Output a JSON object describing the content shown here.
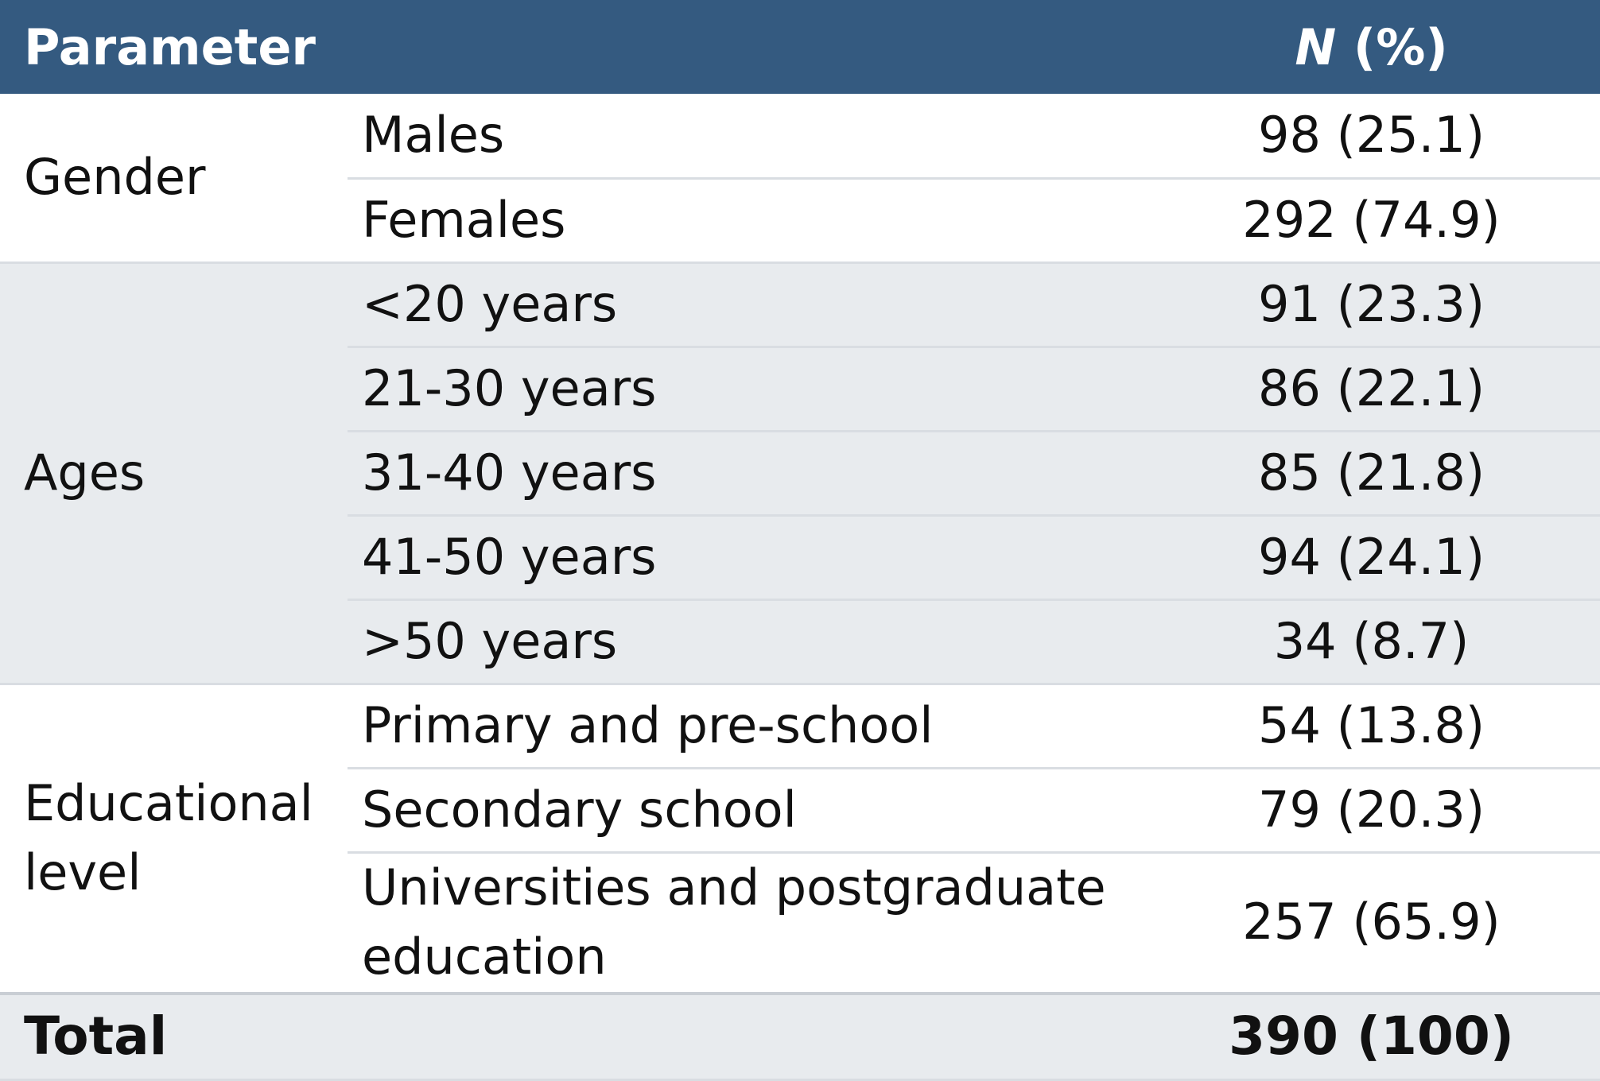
{
  "header": {
    "parameter": "Parameter",
    "n_label": "N",
    "pct_label": "(%)"
  },
  "groups": {
    "gender": {
      "label": "Gender",
      "rows": [
        {
          "label": "Males",
          "value": "98 (25.1)"
        },
        {
          "label": "Females",
          "value": "292 (74.9)"
        }
      ]
    },
    "ages": {
      "label": "Ages",
      "rows": [
        {
          "label": "<20 years",
          "value": "91 (23.3)"
        },
        {
          "label": "21-30 years",
          "value": "86 (22.1)"
        },
        {
          "label": "31-40 years",
          "value": "85 (21.8)"
        },
        {
          "label": "41-50 years",
          "value": "94 (24.1)"
        },
        {
          "label": ">50 years",
          "value": "34 (8.7)"
        }
      ]
    },
    "education": {
      "label": "Educational level",
      "rows": [
        {
          "label": "Primary and pre-school",
          "value": "54 (13.8)"
        },
        {
          "label": "Secondary school",
          "value": "79 (20.3)"
        },
        {
          "label": "Universities and postgraduate education",
          "value": "257 (65.9)"
        }
      ]
    }
  },
  "total": {
    "label": "Total",
    "value": "390 (100)"
  },
  "colors": {
    "header_bg": "#345a80",
    "stripe_gray": "#e8ebee",
    "separator": "#d9dde2"
  }
}
